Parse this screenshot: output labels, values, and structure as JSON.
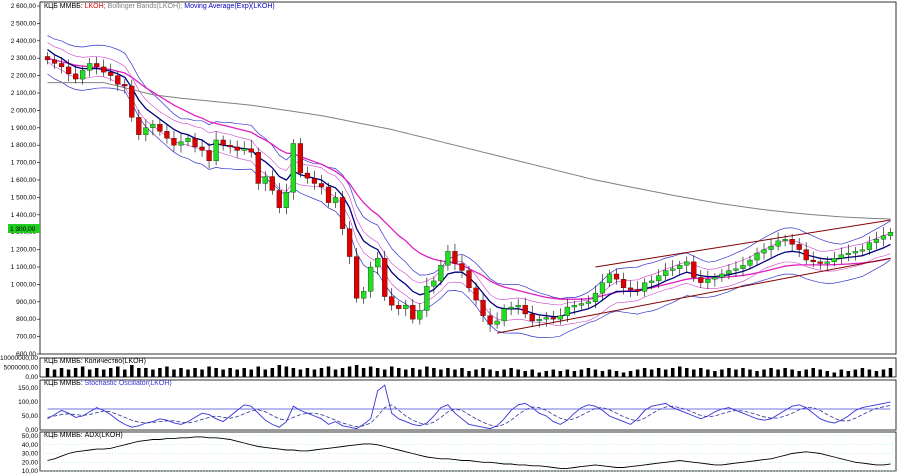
{
  "panels": {
    "main": {
      "title_prefix": "КЦБ ММВБ:",
      "title_items": [
        {
          "text": "LKOH;",
          "color": "#e00000"
        },
        {
          "text": "Bollinger Bands(LKOH);",
          "color": "#808080"
        },
        {
          "text": "Moving Average(Exp)(LKOH)",
          "color": "#0000c0"
        }
      ],
      "price_badge": "1 300,00",
      "badge_color": "#22cc22"
    },
    "volume": {
      "title": "КЦБ ММВБ: Количество(LKOH)"
    },
    "stochastic": {
      "title_prefix": "КЦБ ММВБ:",
      "title_item": "Stochastic Oscillator(LKOH)"
    },
    "adx": {
      "title": "КЦБ ММВБ: ADX(LKOH)"
    }
  },
  "colors": {
    "up": "#22dd22",
    "down": "#dd0000",
    "ema_fast": "#000080",
    "ema_mid": "#e020c0",
    "sma_slow": "#808080",
    "bands": "#3333cc",
    "bands_inner": "#cc44cc",
    "channel": "#800000",
    "stoch": "#3333dd",
    "adx": "#000000"
  },
  "chart_data": [
    {
      "type": "candlestick",
      "panel": "main",
      "ylim": [
        600,
        2600
      ],
      "yticks": [
        "2 600,00",
        "2 500,00",
        "2 400,00",
        "2 300,00",
        "2 200,00",
        "2 100,00",
        "2 000,00",
        "1 900,00",
        "1 800,00",
        "1 700,00",
        "1 600,00",
        "1 500,00",
        "1 400,00",
        "1 300,00",
        "1 200,00",
        "1 100,00",
        "1 000,00",
        "900,00",
        "800,00",
        "700,00",
        "600,00"
      ],
      "ytick_values": [
        2600,
        2500,
        2400,
        2300,
        2200,
        2100,
        2000,
        1900,
        1800,
        1700,
        1600,
        1500,
        1400,
        1300,
        1200,
        1100,
        1000,
        900,
        800,
        700,
        600
      ],
      "close": [
        2290,
        2270,
        2250,
        2210,
        2180,
        2230,
        2270,
        2250,
        2220,
        2200,
        2150,
        2140,
        1960,
        1860,
        1900,
        1920,
        1880,
        1840,
        1800,
        1820,
        1840,
        1790,
        1770,
        1710,
        1830,
        1800,
        1790,
        1770,
        1780,
        1760,
        1580,
        1620,
        1540,
        1440,
        1530,
        1810,
        1640,
        1610,
        1580,
        1560,
        1470,
        1500,
        1320,
        1160,
        920,
        960,
        1100,
        1150,
        930,
        880,
        860,
        880,
        800,
        850,
        990,
        1020,
        1110,
        1190,
        1120,
        1080,
        980,
        910,
        820,
        770,
        790,
        860,
        870,
        880,
        830,
        790,
        800,
        810,
        800,
        820,
        870,
        880,
        890,
        900,
        950,
        1010,
        1060,
        1030,
        980,
        970,
        960,
        1010,
        1020,
        1050,
        1080,
        1090,
        1110,
        1130,
        1040,
        1010,
        1030,
        1040,
        1060,
        1080,
        1090,
        1110,
        1140,
        1180,
        1200,
        1220,
        1250,
        1260,
        1230,
        1200,
        1140,
        1130,
        1120,
        1130,
        1150,
        1170,
        1180,
        1190,
        1200,
        1240,
        1260,
        1280,
        1300
      ],
      "ema_fast": [
        2350,
        2320,
        2300,
        2270,
        2250,
        2240,
        2240,
        2240,
        2235,
        2225,
        2210,
        2190,
        2130,
        2060,
        2010,
        1980,
        1950,
        1920,
        1890,
        1870,
        1860,
        1840,
        1830,
        1800,
        1810,
        1800,
        1795,
        1785,
        1780,
        1775,
        1730,
        1705,
        1670,
        1620,
        1600,
        1650,
        1630,
        1620,
        1610,
        1600,
        1570,
        1555,
        1510,
        1440,
        1320,
        1250,
        1220,
        1200,
        1130,
        1070,
        1030,
        1000,
        960,
        940,
        950,
        970,
        1010,
        1060,
        1070,
        1070,
        1040,
        1000,
        950,
        900,
        870,
        860,
        860,
        860,
        850,
        835,
        825,
        820,
        815,
        815,
        830,
        840,
        850,
        860,
        880,
        910,
        940,
        960,
        960,
        960,
        960,
        975,
        985,
        1000,
        1020,
        1035,
        1055,
        1070,
        1060,
        1050,
        1045,
        1045,
        1050,
        1055,
        1065,
        1075,
        1090,
        1110,
        1130,
        1150,
        1170,
        1185,
        1190,
        1185,
        1170,
        1160,
        1150,
        1145,
        1145,
        1150,
        1155,
        1160,
        1165,
        1180,
        1195,
        1210,
        1230
      ],
      "ema_mid": [
        2300,
        2290,
        2280,
        2270,
        2260,
        2255,
        2250,
        2245,
        2240,
        2235,
        2225,
        2215,
        2190,
        2160,
        2130,
        2105,
        2080,
        2055,
        2030,
        2010,
        1990,
        1970,
        1955,
        1935,
        1925,
        1915,
        1905,
        1895,
        1885,
        1875,
        1850,
        1830,
        1805,
        1775,
        1755,
        1750,
        1735,
        1720,
        1705,
        1690,
        1670,
        1650,
        1620,
        1580,
        1520,
        1470,
        1430,
        1400,
        1360,
        1320,
        1280,
        1250,
        1210,
        1180,
        1160,
        1145,
        1135,
        1130,
        1120,
        1110,
        1090,
        1070,
        1050,
        1020,
        1000,
        985,
        975,
        965,
        955,
        945,
        935,
        925,
        920,
        915,
        915,
        915,
        915,
        918,
        925,
        935,
        945,
        955,
        960,
        965,
        970,
        975,
        980,
        990,
        1000,
        1010,
        1020,
        1030,
        1035,
        1035,
        1036,
        1037,
        1040,
        1043,
        1047,
        1052,
        1058,
        1066,
        1075,
        1085,
        1095,
        1105,
        1110,
        1112,
        1112,
        1112,
        1112,
        1112,
        1113,
        1115,
        1117,
        1120,
        1123,
        1128,
        1134,
        1141,
        1150
      ],
      "sma_slow": [
        2160,
        2160,
        2160,
        2160,
        2160,
        2160,
        2160,
        2160,
        2160,
        2150,
        2140,
        2130,
        2120,
        2110,
        2100,
        2090,
        2085,
        2080,
        2075,
        2070,
        2066,
        2062,
        2058,
        2054,
        2050,
        2046,
        2042,
        2038,
        2034,
        2030,
        2024,
        2018,
        2012,
        2006,
        2000,
        1994,
        1988,
        1982,
        1976,
        1970,
        1962,
        1954,
        1946,
        1938,
        1930,
        1922,
        1914,
        1906,
        1898,
        1890,
        1880,
        1870,
        1860,
        1850,
        1840,
        1830,
        1820,
        1810,
        1800,
        1790,
        1780,
        1770,
        1760,
        1750,
        1740,
        1730,
        1720,
        1710,
        1700,
        1690,
        1680,
        1670,
        1660,
        1650,
        1640,
        1630,
        1620,
        1610,
        1600,
        1592,
        1584,
        1576,
        1568,
        1560,
        1552,
        1544,
        1536,
        1528,
        1520,
        1512,
        1505,
        1498,
        1491,
        1484,
        1477,
        1470,
        1464,
        1458,
        1452,
        1446,
        1440,
        1435,
        1430,
        1425,
        1420,
        1416,
        1412,
        1408,
        1404,
        1400,
        1397,
        1394,
        1391,
        1388,
        1386,
        1384,
        1382,
        1380,
        1378,
        1377,
        1376
      ]
    },
    {
      "type": "bar",
      "panel": "volume",
      "yticks": [
        "10000000,00",
        "5000000,00",
        "0,00"
      ],
      "ytick_values": [
        10000000,
        5000000,
        0
      ],
      "ylim": [
        0,
        10000000
      ],
      "values": [
        6,
        5,
        6,
        5,
        6,
        7,
        5,
        6,
        5,
        6,
        7,
        5,
        8,
        6,
        6,
        5,
        6,
        7,
        5,
        6,
        5,
        6,
        5,
        7,
        6,
        5,
        6,
        5,
        6,
        5,
        7,
        5,
        6,
        8,
        7,
        6,
        5,
        6,
        5,
        6,
        7,
        5,
        6,
        7,
        8,
        6,
        7,
        6,
        5,
        7,
        6,
        5,
        6,
        5,
        7,
        6,
        5,
        6,
        5,
        6,
        4,
        5,
        6,
        5,
        4,
        5,
        6,
        5,
        4,
        5,
        3,
        4,
        5,
        4,
        5,
        4,
        5,
        6,
        5,
        4,
        5,
        4,
        3,
        4,
        5,
        6,
        5,
        6,
        5,
        6,
        7,
        6,
        5,
        6,
        5,
        4,
        5,
        6,
        5,
        6,
        5,
        4,
        5,
        6,
        5,
        6,
        5,
        4,
        5,
        6,
        5,
        4,
        3,
        5,
        4,
        5,
        6,
        5,
        4,
        5,
        6
      ]
    },
    {
      "type": "line",
      "panel": "stochastic",
      "yticks": [
        "150,00",
        "100,00",
        "50,00",
        "0,00"
      ],
      "ytick_values": [
        150,
        100,
        50,
        0
      ],
      "ylim": [
        0,
        150
      ],
      "series": [
        {
          "values": [
            40,
            55,
            70,
            60,
            45,
            50,
            65,
            80,
            70,
            55,
            35,
            20,
            10,
            15,
            25,
            30,
            40,
            35,
            25,
            20,
            30,
            45,
            60,
            55,
            40,
            30,
            50,
            70,
            90,
            85,
            60,
            35,
            20,
            10,
            30,
            85,
            70,
            60,
            50,
            40,
            20,
            30,
            15,
            10,
            5,
            20,
            40,
            140,
            160,
            60,
            40,
            30,
            20,
            15,
            25,
            50,
            80,
            90,
            60,
            40,
            20,
            15,
            10,
            5,
            15,
            40,
            70,
            90,
            95,
            80,
            60,
            50,
            30,
            20,
            35,
            60,
            80,
            90,
            85,
            70,
            50,
            40,
            30,
            20,
            40,
            70,
            85,
            90,
            95,
            80,
            70,
            60,
            50,
            40,
            50,
            65,
            75,
            80,
            70,
            60,
            50,
            40,
            35,
            40,
            55,
            70,
            85,
            90,
            80,
            60,
            40,
            30,
            25,
            35,
            50,
            70,
            80,
            85,
            90,
            95,
            100
          ]
        },
        {
          "values": [
            45,
            50,
            55,
            58,
            55,
            52,
            55,
            62,
            68,
            65,
            55,
            45,
            35,
            28,
            25,
            27,
            30,
            33,
            33,
            28,
            25,
            30,
            38,
            45,
            50,
            45,
            42,
            48,
            58,
            68,
            72,
            65,
            52,
            40,
            35,
            45,
            55,
            60,
            60,
            55,
            45,
            35,
            25,
            18,
            12,
            15,
            25,
            50,
            80,
            90,
            70,
            50,
            35,
            25,
            20,
            28,
            45,
            65,
            75,
            70,
            55,
            40,
            28,
            18,
            12,
            20,
            35,
            55,
            72,
            82,
            80,
            70,
            55,
            42,
            35,
            40,
            52,
            65,
            78,
            80,
            72,
            60,
            48,
            38,
            32,
            42,
            58,
            72,
            82,
            85,
            80,
            72,
            62,
            52,
            47,
            50,
            58,
            65,
            70,
            68,
            62,
            55,
            47,
            42,
            43,
            50,
            60,
            72,
            80,
            80,
            70,
            55,
            42,
            33,
            33,
            42,
            55,
            67,
            77,
            83,
            88
          ]
        },
        {
          "values": [
            75,
            75,
            75,
            75,
            75,
            75,
            75,
            75,
            75,
            75,
            75,
            75,
            75,
            75,
            75,
            75,
            75,
            75,
            75,
            75,
            75,
            75,
            75,
            75,
            75,
            75,
            75,
            75,
            75,
            75,
            75,
            75,
            75,
            75,
            75,
            75,
            75,
            75,
            75,
            75,
            75,
            75,
            75,
            75,
            75,
            75,
            75,
            75,
            75,
            75,
            75,
            75,
            75,
            75,
            75,
            75,
            75,
            75,
            75,
            75,
            75,
            75,
            75,
            75,
            75,
            75,
            75,
            75,
            75,
            75,
            75,
            75,
            75,
            75,
            75,
            75,
            75,
            75,
            75,
            75,
            75,
            75,
            75,
            75,
            75,
            75,
            75,
            75,
            75,
            75,
            75,
            75,
            75,
            75,
            75,
            75,
            75,
            75,
            75,
            75,
            75,
            75,
            75,
            75,
            75,
            75,
            75,
            75,
            75,
            75,
            75,
            75,
            75,
            75,
            75,
            75,
            75,
            75,
            75,
            75,
            75
          ]
        }
      ]
    },
    {
      "type": "line",
      "panel": "adx",
      "yticks": [
        "50,00",
        "40,00",
        "30,00",
        "20,00",
        "10,00"
      ],
      "ytick_values": [
        50,
        40,
        30,
        20,
        10
      ],
      "ylim": [
        10,
        50
      ],
      "series": [
        {
          "values": [
            22,
            24,
            27,
            30,
            32,
            33,
            34,
            35,
            35,
            36,
            38,
            40,
            42,
            44,
            45,
            46,
            46,
            47,
            47,
            48,
            48,
            49,
            49,
            48,
            48,
            47,
            46,
            44,
            42,
            40,
            38,
            37,
            36,
            35,
            34,
            34,
            33,
            33,
            34,
            35,
            36,
            37,
            38,
            39,
            40,
            41,
            41,
            40,
            38,
            36,
            34,
            32,
            30,
            28,
            26,
            25,
            24,
            24,
            23,
            22,
            22,
            21,
            20,
            20,
            19,
            18,
            18,
            17,
            17,
            16,
            16,
            15,
            14,
            13,
            13,
            14,
            15,
            16,
            17,
            16,
            15,
            14,
            14,
            15,
            16,
            17,
            18,
            19,
            20,
            21,
            22,
            21,
            20,
            19,
            18,
            17,
            17,
            18,
            19,
            20,
            21,
            22,
            23,
            24,
            26,
            28,
            30,
            31,
            32,
            31,
            30,
            28,
            26,
            24,
            22,
            20,
            19,
            18,
            17,
            17,
            18
          ]
        }
      ]
    }
  ]
}
